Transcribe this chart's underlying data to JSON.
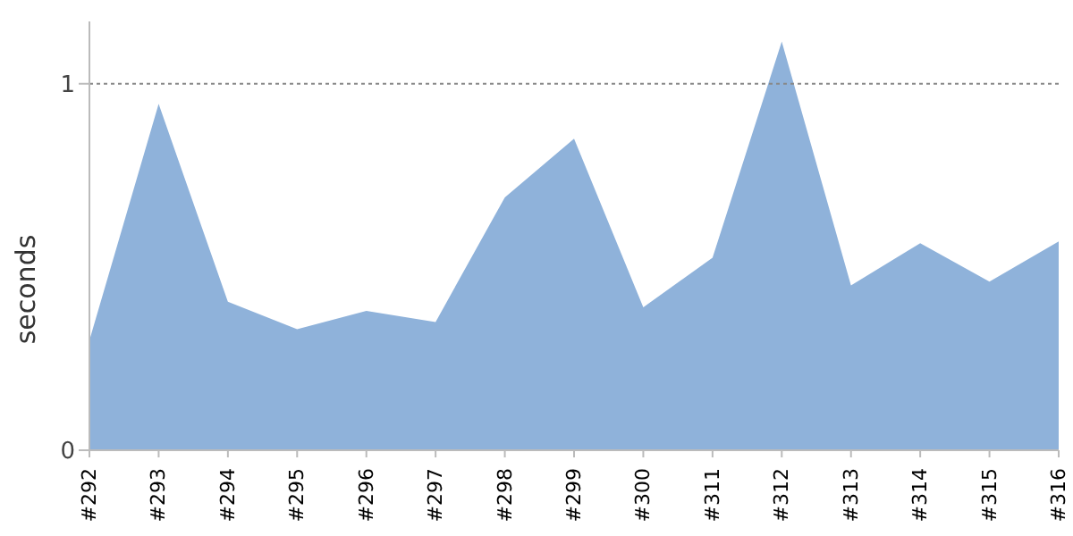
{
  "chart_data": {
    "type": "area",
    "ylabel": "seconds",
    "categories": [
      "#292",
      "#293",
      "#294",
      "#295",
      "#296",
      "#297",
      "#298",
      "#299",
      "#300",
      "#311",
      "#312",
      "#313",
      "#314",
      "#315",
      "#316"
    ],
    "series": [
      {
        "color": "#8fb2da",
        "values": [
          0.3,
          0.945,
          0.405,
          0.33,
          0.38,
          0.35,
          0.69,
          0.85,
          0.39,
          0.525,
          1.115,
          0.45,
          0.565,
          0.46,
          0.57
        ]
      }
    ],
    "ylim": [
      0,
      1.17
    ],
    "yticks": [
      0,
      1
    ],
    "ref_lines": [
      {
        "axis": "y",
        "value": 1,
        "color": "#888888",
        "line_style": "dotted"
      }
    ],
    "grid": false,
    "legend": false
  }
}
